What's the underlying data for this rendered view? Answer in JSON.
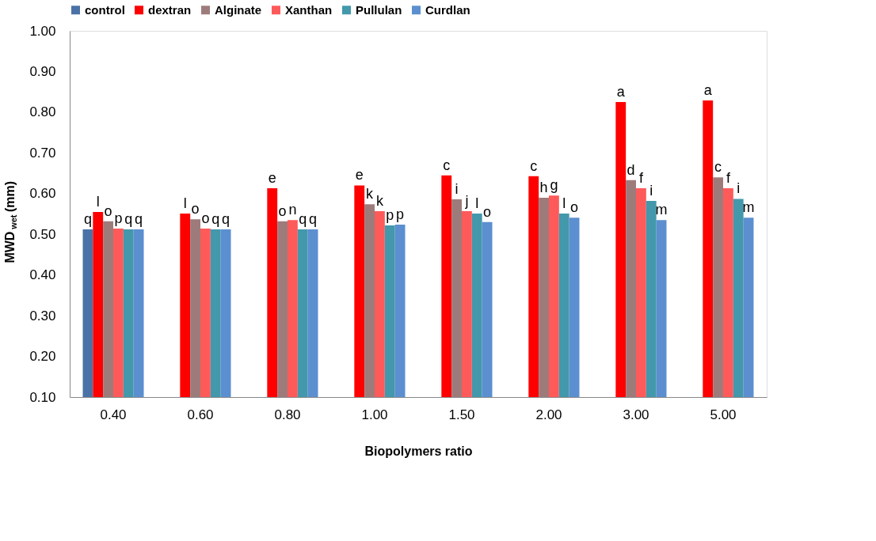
{
  "chart_data": {
    "type": "bar",
    "xlabel": "Biopolymers ratio",
    "ylabel": "MWD$_{wet}$  (mm)",
    "categories": [
      "0.40",
      "0.60",
      "0.80",
      "1.00",
      "1.50",
      "2.00",
      "3.00",
      "5.00"
    ],
    "ylim": [
      0.1,
      1.0
    ],
    "yticks": [
      {
        "value": 0.1,
        "label": "0.10"
      },
      {
        "value": 0.2,
        "label": "0.20"
      },
      {
        "value": 0.3,
        "label": "0.30"
      },
      {
        "value": 0.4,
        "label": "0.40"
      },
      {
        "value": 0.5,
        "label": "0.50"
      },
      {
        "value": 0.6,
        "label": "0.60"
      },
      {
        "value": 0.7,
        "label": "0.70"
      },
      {
        "value": 0.8,
        "label": "0.80"
      },
      {
        "value": 0.9,
        "label": "0.90"
      },
      {
        "value": 1.0,
        "label": "1.00"
      }
    ],
    "grid": false,
    "legend": "top",
    "series": [
      {
        "name": "control",
        "color": "#4a72a6",
        "values": [
          0.512,
          null,
          null,
          null,
          null,
          null,
          null,
          null
        ],
        "value_labels": [
          "q",
          null,
          null,
          null,
          null,
          null,
          null,
          null
        ]
      },
      {
        "name": "dextran",
        "color": "#ff0000",
        "values": [
          0.555,
          0.551,
          0.613,
          0.62,
          0.645,
          0.643,
          0.825,
          0.829
        ],
        "value_labels": [
          "l",
          "l",
          "e",
          "e",
          "c",
          "c",
          "a",
          "a"
        ]
      },
      {
        "name": "Alginate",
        "color": "#9e7b7b",
        "values": [
          0.532,
          0.537,
          0.532,
          0.574,
          0.586,
          0.59,
          0.633,
          0.64
        ],
        "value_labels": [
          "o",
          "o",
          "o",
          "k",
          "i",
          "h",
          "d",
          "c"
        ]
      },
      {
        "name": "Xanthan",
        "color": "#ff5a5a",
        "values": [
          0.514,
          0.514,
          0.535,
          0.557,
          0.557,
          0.595,
          0.613,
          0.613
        ],
        "value_labels": [
          "p",
          "o",
          "n",
          "k",
          "j",
          "g",
          "f",
          "f"
        ]
      },
      {
        "name": "Pullulan",
        "color": "#4398ab",
        "values": [
          0.512,
          0.512,
          0.512,
          0.522,
          0.551,
          0.551,
          0.582,
          0.587
        ],
        "value_labels": [
          "q",
          "q",
          "q",
          "p",
          "l",
          "l",
          "i",
          "i"
        ]
      },
      {
        "name": "Curdlan",
        "color": "#5b8fd0",
        "values": [
          0.512,
          0.512,
          0.512,
          0.524,
          0.53,
          0.541,
          0.535,
          0.541
        ],
        "value_labels": [
          "q",
          "q",
          "q",
          "p",
          "o",
          "o",
          "m",
          "m"
        ]
      }
    ]
  }
}
